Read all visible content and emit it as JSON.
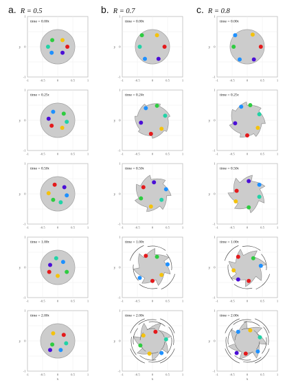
{
  "columns": [
    {
      "letter": "a.",
      "label": "R = 0.5",
      "shape": "disk"
    },
    {
      "letter": "b.",
      "label": "R = 0.7",
      "shape": "pinwheel"
    },
    {
      "letter": "c.",
      "label": "R = 0.8",
      "shape": "pinwheel"
    }
  ],
  "axes": {
    "xlim": [
      -1,
      1
    ],
    "ylim": [
      -1,
      1
    ],
    "xticks": [
      "-1",
      "-0.5",
      "0",
      "0.5",
      "1"
    ],
    "yticks": [
      "-1",
      "0",
      "1"
    ],
    "xlabel": "x",
    "ylabel": "y"
  },
  "rows": [
    {
      "times": [
        "time = 0.00τ",
        "time = 0.00τ",
        "time = 0.00τ"
      ],
      "deform": [
        0,
        0,
        0
      ]
    },
    {
      "times": [
        "time = 0.25τ",
        "time = 0.24τ",
        "time = 0.25τ"
      ],
      "deform": [
        0,
        0.35,
        0.5
      ]
    },
    {
      "times": [
        "time = 0.50τ",
        "time = 0.50τ",
        "time = 0.50τ"
      ],
      "deform": [
        0,
        0.6,
        0.8
      ]
    },
    {
      "times": [
        "time = 1.00τ",
        "time = 1.00τ",
        "time = 1.00τ"
      ],
      "deform": [
        0,
        0.85,
        0.95
      ]
    },
    {
      "times": [
        "time = 2.00τ",
        "time = 2.00τ",
        "time = 2.00τ"
      ],
      "deform": [
        0,
        1.0,
        1.0
      ]
    }
  ],
  "particle_colors": [
    "#2ecc40",
    "#f4c20d",
    "#e41a1c",
    "#4b0fd6",
    "#1e90ff",
    "#22d3a6"
  ],
  "disk_color": "#cccccc",
  "frame_color": "#bbbbbb",
  "particles": [
    [
      [
        [
          -0.18,
          0.22,
          0
        ],
        [
          0.16,
          0.22,
          1
        ],
        [
          0.32,
          0.0,
          2
        ],
        [
          0.16,
          -0.2,
          3
        ],
        [
          -0.2,
          -0.2,
          4
        ],
        [
          -0.32,
          0.0,
          5
        ]
      ],
      [
        [
          -0.35,
          0.38,
          0
        ],
        [
          0.15,
          0.38,
          1
        ],
        [
          0.4,
          0.0,
          2
        ],
        [
          0.2,
          -0.4,
          3
        ],
        [
          -0.25,
          -0.4,
          4
        ],
        [
          -0.42,
          0.0,
          5
        ]
      ],
      [
        [
          -0.4,
          0.38,
          4
        ],
        [
          0.18,
          0.4,
          1
        ],
        [
          0.45,
          0.0,
          2
        ],
        [
          0.22,
          -0.42,
          3
        ],
        [
          -0.25,
          -0.42,
          4
        ],
        [
          -0.45,
          0.0,
          0
        ]
      ]
    ],
    [
      [
        [
          -0.15,
          0.28,
          4
        ],
        [
          0.2,
          0.22,
          0
        ],
        [
          0.3,
          -0.05,
          5
        ],
        [
          0.15,
          -0.25,
          1
        ],
        [
          -0.2,
          -0.18,
          2
        ],
        [
          -0.3,
          0.05,
          3
        ]
      ],
      [
        [
          -0.22,
          0.4,
          4
        ],
        [
          0.15,
          0.48,
          0
        ],
        [
          0.42,
          0.15,
          5
        ],
        [
          0.3,
          -0.28,
          1
        ],
        [
          -0.05,
          -0.45,
          2
        ],
        [
          -0.38,
          -0.08,
          3
        ]
      ],
      [
        [
          -0.2,
          0.45,
          4
        ],
        [
          0.1,
          0.5,
          0
        ],
        [
          0.4,
          0.2,
          5
        ],
        [
          0.35,
          -0.25,
          1
        ],
        [
          0.0,
          -0.5,
          2
        ],
        [
          -0.4,
          -0.1,
          3
        ]
      ]
    ],
    [
      [
        [
          -0.1,
          0.3,
          2
        ],
        [
          0.22,
          0.22,
          3
        ],
        [
          0.3,
          -0.05,
          4
        ],
        [
          0.1,
          -0.28,
          5
        ],
        [
          -0.15,
          -0.2,
          0
        ],
        [
          -0.3,
          0.02,
          1
        ]
      ],
      [
        [
          -0.3,
          0.22,
          2
        ],
        [
          0.05,
          0.38,
          3
        ],
        [
          0.45,
          0.15,
          4
        ],
        [
          0.3,
          -0.2,
          5
        ],
        [
          -0.05,
          -0.42,
          1
        ],
        [
          -0.38,
          -0.15,
          0
        ]
      ],
      [
        [
          -0.35,
          0.1,
          2
        ],
        [
          0.05,
          0.42,
          3
        ],
        [
          0.4,
          0.3,
          4
        ],
        [
          0.4,
          -0.1,
          5
        ],
        [
          0.05,
          -0.45,
          0
        ],
        [
          -0.38,
          -0.25,
          1
        ]
      ]
    ],
    [
      [
        [
          -0.25,
          0.08,
          3
        ],
        [
          0.18,
          0.18,
          4
        ],
        [
          0.3,
          -0.15,
          0
        ],
        [
          0.0,
          -0.28,
          1
        ],
        [
          -0.28,
          -0.15,
          2
        ],
        [
          -0.05,
          0.3,
          5
        ]
      ],
      [
        [
          -0.22,
          0.38,
          2
        ],
        [
          0.15,
          0.35,
          0
        ],
        [
          0.5,
          0.1,
          4
        ],
        [
          0.3,
          -0.25,
          1
        ],
        [
          0.0,
          -0.45,
          2
        ],
        [
          -0.42,
          -0.35,
          4
        ]
      ],
      [
        [
          -0.3,
          0.35,
          2
        ],
        [
          0.2,
          0.3,
          0
        ],
        [
          0.45,
          0.05,
          4
        ],
        [
          0.05,
          -0.45,
          2
        ],
        [
          -0.3,
          -0.4,
          3
        ],
        [
          -0.45,
          -0.1,
          1
        ]
      ]
    ],
    [
      [
        [
          -0.15,
          0.25,
          1
        ],
        [
          0.2,
          0.2,
          2
        ],
        [
          0.28,
          -0.08,
          5
        ],
        [
          0.1,
          -0.3,
          4
        ],
        [
          -0.18,
          -0.12,
          0
        ],
        [
          -0.25,
          -0.3,
          3
        ]
      ],
      [
        [
          -0.3,
          0.18,
          1
        ],
        [
          0.1,
          0.3,
          2
        ],
        [
          0.45,
          0.05,
          5
        ],
        [
          0.3,
          -0.4,
          4
        ],
        [
          -0.1,
          -0.42,
          1
        ],
        [
          -0.4,
          -0.15,
          0
        ]
      ],
      [
        [
          -0.3,
          0.3,
          4
        ],
        [
          0.1,
          0.35,
          1
        ],
        [
          0.42,
          0.12,
          5
        ],
        [
          0.35,
          -0.35,
          4
        ],
        [
          -0.05,
          -0.42,
          2
        ],
        [
          -0.35,
          -0.4,
          3
        ]
      ]
    ]
  ]
}
